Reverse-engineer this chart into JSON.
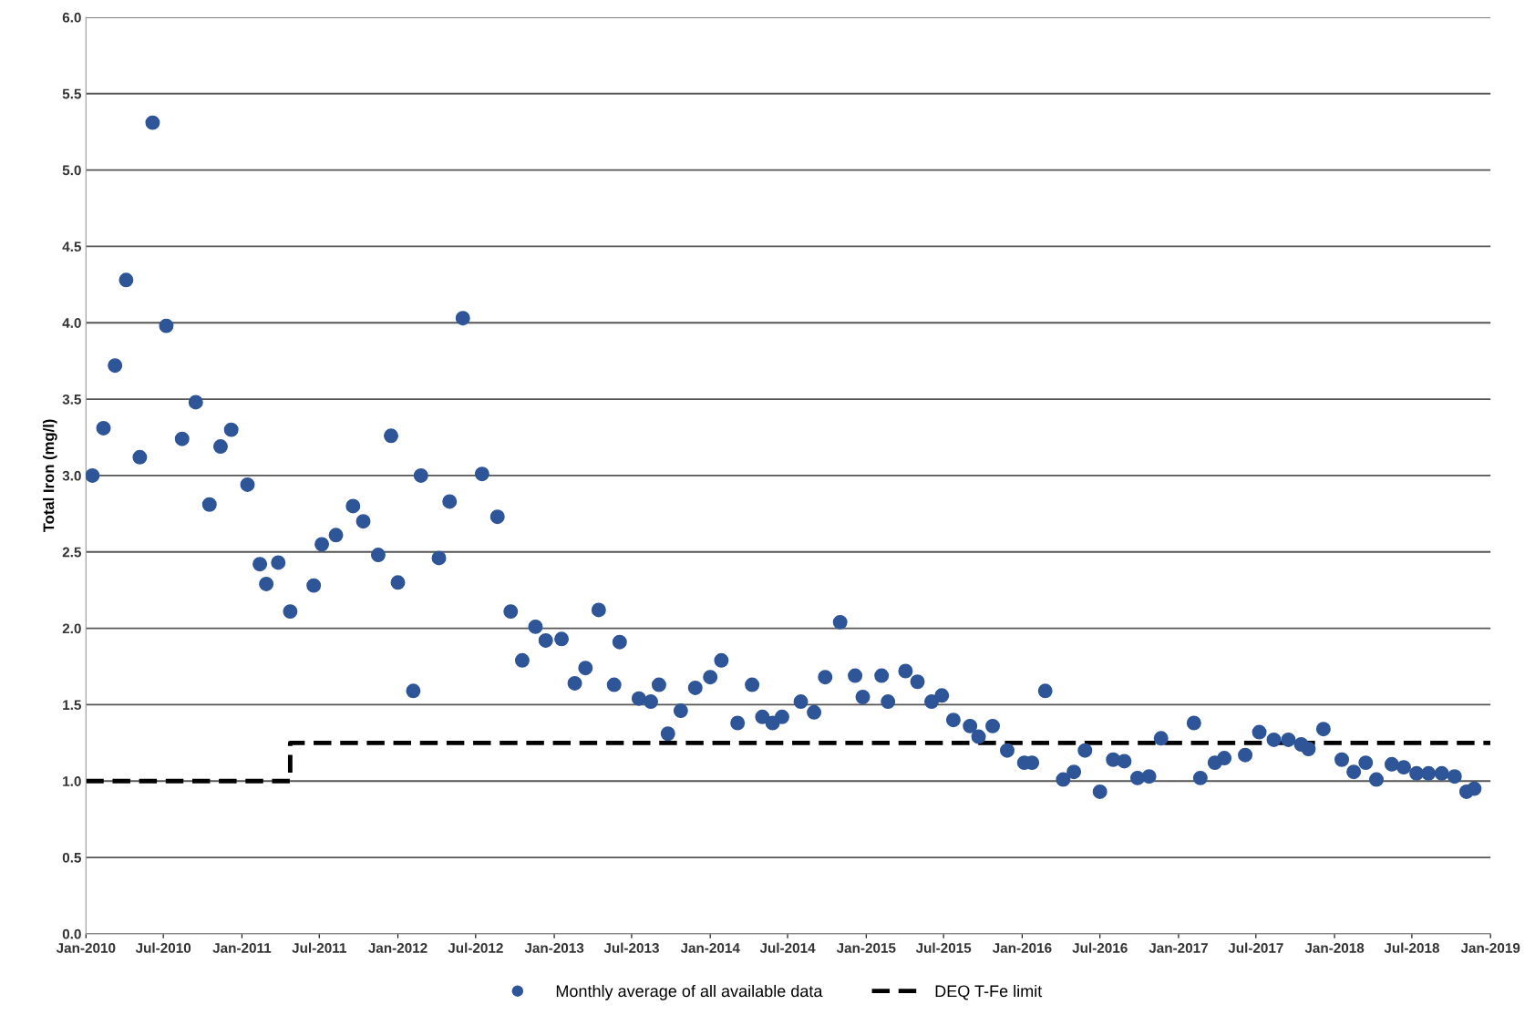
{
  "chart_data": {
    "type": "scatter",
    "ylabel": "Total Iron (mg/l)",
    "xlim": [
      "2010-01-01",
      "2019-01-01"
    ],
    "ylim": [
      0,
      6
    ],
    "xticks": [
      {
        "value": "2010-01-01",
        "label": "Jan-2010"
      },
      {
        "value": "2010-07-01",
        "label": "Jul-2010"
      },
      {
        "value": "2011-01-01",
        "label": "Jan-2011"
      },
      {
        "value": "2011-07-01",
        "label": "Jul-2011"
      },
      {
        "value": "2012-01-01",
        "label": "Jan-2012"
      },
      {
        "value": "2012-07-01",
        "label": "Jul-2012"
      },
      {
        "value": "2013-01-01",
        "label": "Jan-2013"
      },
      {
        "value": "2013-07-01",
        "label": "Jul-2013"
      },
      {
        "value": "2014-01-01",
        "label": "Jan-2014"
      },
      {
        "value": "2014-07-01",
        "label": "Jul-2014"
      },
      {
        "value": "2015-01-01",
        "label": "Jan-2015"
      },
      {
        "value": "2015-07-01",
        "label": "Jul-2015"
      },
      {
        "value": "2016-01-01",
        "label": "Jan-2016"
      },
      {
        "value": "2016-07-01",
        "label": "Jul-2016"
      },
      {
        "value": "2017-01-01",
        "label": "Jan-2017"
      },
      {
        "value": "2017-07-01",
        "label": "Jul-2017"
      },
      {
        "value": "2018-01-01",
        "label": "Jan-2018"
      },
      {
        "value": "2018-07-01",
        "label": "Jul-2018"
      },
      {
        "value": "2019-01-01",
        "label": "Jan-2019"
      }
    ],
    "yticks": [
      {
        "value": 0,
        "label": "0.0"
      },
      {
        "value": 0.5,
        "label": "0.5"
      },
      {
        "value": 1,
        "label": "1.0"
      },
      {
        "value": 1.5,
        "label": "1.5"
      },
      {
        "value": 2,
        "label": "2.0"
      },
      {
        "value": 2.5,
        "label": "2.5"
      },
      {
        "value": 3,
        "label": "3.0"
      },
      {
        "value": 3.5,
        "label": "3.5"
      },
      {
        "value": 4,
        "label": "4.0"
      },
      {
        "value": 4.5,
        "label": "4.5"
      },
      {
        "value": 5,
        "label": "5.0"
      },
      {
        "value": 5.5,
        "label": "5.5"
      },
      {
        "value": 6,
        "label": "6.0"
      }
    ],
    "grid": "y",
    "legend": "bottom",
    "series": [
      {
        "name": "Monthly average of all available data",
        "marker": "circle",
        "color": "#2e5597",
        "x": [
          "2010-01-16",
          "2010-02-11",
          "2010-03-10",
          "2010-04-05",
          "2010-05-07",
          "2010-06-06",
          "2010-07-08",
          "2010-08-14",
          "2010-09-15",
          "2010-10-17",
          "2010-11-12",
          "2010-12-07",
          "2011-01-14",
          "2011-02-12",
          "2011-02-27",
          "2011-03-27",
          "2011-04-24",
          "2011-06-18",
          "2011-07-07",
          "2011-08-09",
          "2011-09-18",
          "2011-10-12",
          "2011-11-16",
          "2011-12-16",
          "2012-01-01",
          "2012-02-06",
          "2012-02-24",
          "2012-04-06",
          "2012-05-01",
          "2012-06-01",
          "2012-07-16",
          "2012-08-21",
          "2012-09-21",
          "2012-10-18",
          "2012-11-18",
          "2012-12-12",
          "2013-01-18",
          "2013-02-18",
          "2013-03-15",
          "2013-04-15",
          "2013-05-21",
          "2013-06-03",
          "2013-07-18",
          "2013-08-15",
          "2013-09-03",
          "2013-09-24",
          "2013-10-24",
          "2013-11-27",
          "2014-01-01",
          "2014-01-27",
          "2014-03-06",
          "2014-04-09",
          "2014-05-03",
          "2014-05-27",
          "2014-06-18",
          "2014-08-01",
          "2014-09-01",
          "2014-09-27",
          "2014-11-01",
          "2014-12-06",
          "2014-12-24",
          "2015-02-06",
          "2015-02-21",
          "2015-04-03",
          "2015-05-01",
          "2015-06-03",
          "2015-06-27",
          "2015-07-24",
          "2015-09-01",
          "2015-09-21",
          "2015-10-24",
          "2015-11-27",
          "2016-01-06",
          "2016-01-24",
          "2016-02-24",
          "2016-04-06",
          "2016-05-01",
          "2016-05-27",
          "2016-07-01",
          "2016-08-01",
          "2016-08-27",
          "2016-09-27",
          "2016-10-24",
          "2016-11-21",
          "2017-02-06",
          "2017-02-21",
          "2017-03-27",
          "2017-04-18",
          "2017-06-06",
          "2017-07-09",
          "2017-08-12",
          "2017-09-15",
          "2017-10-15",
          "2017-11-01",
          "2017-12-06",
          "2018-01-18",
          "2018-02-15",
          "2018-03-15",
          "2018-04-09",
          "2018-05-15",
          "2018-06-12",
          "2018-07-12",
          "2018-08-09",
          "2018-09-09",
          "2018-10-09",
          "2018-11-06",
          "2018-11-24"
        ],
        "values": [
          3.0,
          3.31,
          3.72,
          4.28,
          3.12,
          5.31,
          3.98,
          3.24,
          3.48,
          2.81,
          3.19,
          3.3,
          2.94,
          2.42,
          2.29,
          2.43,
          2.11,
          2.28,
          2.55,
          2.61,
          2.8,
          2.7,
          2.48,
          3.26,
          2.3,
          1.59,
          3.0,
          2.46,
          2.83,
          4.03,
          3.01,
          2.73,
          2.11,
          1.79,
          2.01,
          1.92,
          1.93,
          1.64,
          1.74,
          2.12,
          1.63,
          1.91,
          1.54,
          1.52,
          1.63,
          1.31,
          1.46,
          1.61,
          1.68,
          1.79,
          1.38,
          1.63,
          1.42,
          1.38,
          1.42,
          1.52,
          1.45,
          1.68,
          2.04,
          1.69,
          1.55,
          1.69,
          1.52,
          1.72,
          1.65,
          1.52,
          1.56,
          1.4,
          1.36,
          1.29,
          1.36,
          1.2,
          1.12,
          1.12,
          1.59,
          1.01,
          1.06,
          1.2,
          0.93,
          1.14,
          1.13,
          1.02,
          1.03,
          1.28,
          1.38,
          1.02,
          1.12,
          1.15,
          1.17,
          1.32,
          1.27,
          1.27,
          1.24,
          1.21,
          1.34,
          1.14,
          1.06,
          1.12,
          1.01,
          1.11,
          1.09,
          1.05,
          1.05,
          1.05,
          1.03,
          0.93,
          0.95
        ]
      },
      {
        "name": "DEQ T-Fe limit",
        "type": "step",
        "line_style": "dashed",
        "marker": "none",
        "color": "#000000",
        "x": [
          "2010-01-01",
          "2011-04-24",
          "2019-01-01"
        ],
        "values": [
          1.0,
          1.25,
          1.25
        ]
      }
    ]
  }
}
